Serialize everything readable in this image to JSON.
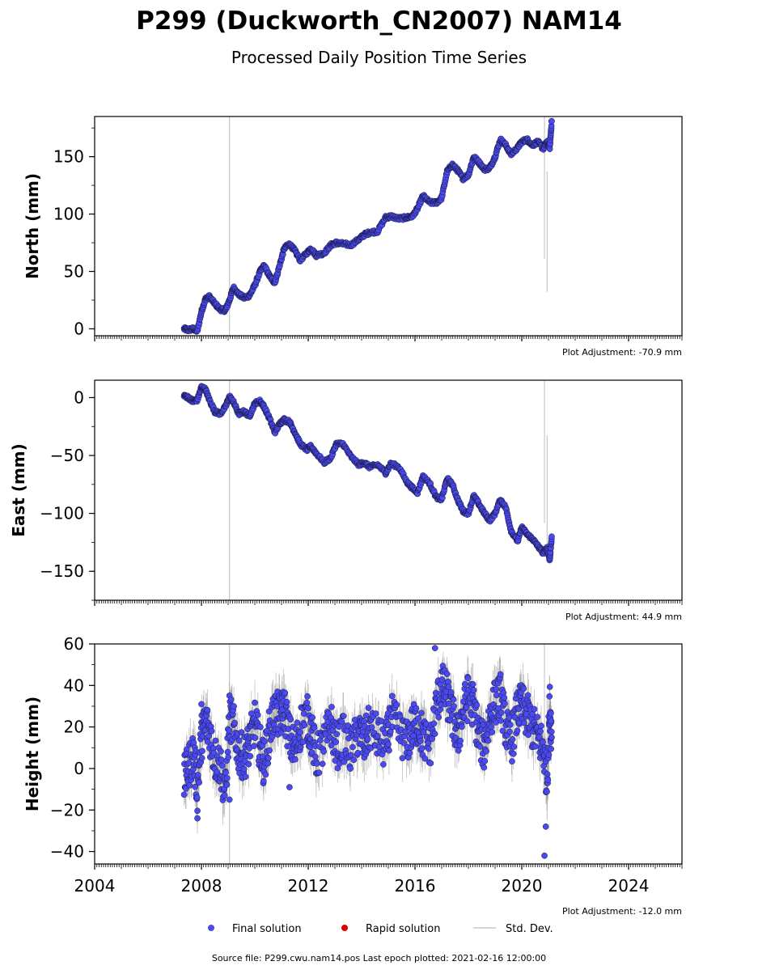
{
  "figure": {
    "title": "P299 (Duckworth_CN2007) NAM14",
    "subtitle": "Processed Daily Position Time Series",
    "footer": "Source file: P299.cwu.nam14.pos  Last epoch plotted: 2021-02-16 12:00:00",
    "legend": {
      "placement": "bottom-center",
      "items": [
        {
          "label": "Final solution",
          "color": "#4a4af0",
          "kind": "dot"
        },
        {
          "label": "Rapid solution",
          "color": "#e00000",
          "kind": "dot"
        },
        {
          "label": "Std. Dev.",
          "color": "#c8c8c8",
          "kind": "line"
        }
      ]
    },
    "colors": {
      "final": "#4a4af0",
      "rapid": "#e00000",
      "stddev": "#b4b4b4"
    }
  },
  "chart_data": [
    {
      "type": "scatter",
      "ylabel": "North (mm)",
      "adjustment": "Plot Adjustment: -70.9 mm",
      "xlim": [
        2004,
        2026
      ],
      "ylim": [
        -6,
        185
      ],
      "yticks": [
        0,
        50,
        100,
        150
      ],
      "xticks": [
        2004,
        2008,
        2012,
        2016,
        2020,
        2024
      ],
      "show_xticklabels": false,
      "grid": false,
      "series": [
        {
          "x": [
            2007.35,
            2007.5,
            2007.7,
            2007.85,
            2008.0,
            2008.15,
            2008.3,
            2008.5,
            2008.7,
            2008.9,
            2009.05,
            2009.2,
            2009.4,
            2009.6,
            2009.8,
            2010.0,
            2010.2,
            2010.35,
            2010.55,
            2010.75,
            2010.95,
            2011.1,
            2011.3,
            2011.5,
            2011.7,
            2011.95,
            2012.1,
            2012.3,
            2012.6,
            2012.85,
            2013.05,
            2013.3,
            2013.6,
            2013.9,
            2014.1,
            2014.3,
            2014.6,
            2014.9,
            2015.1,
            2015.4,
            2015.7,
            2015.9,
            2016.1,
            2016.3,
            2016.55,
            2016.8,
            2017.0,
            2017.2,
            2017.4,
            2017.6,
            2017.8,
            2018.0,
            2018.2,
            2018.4,
            2018.6,
            2018.8,
            2019.0,
            2019.2,
            2019.4,
            2019.6,
            2019.85,
            2020.0,
            2020.2,
            2020.4,
            2020.6,
            2020.8,
            2020.95,
            2021.05,
            2021.12
          ],
          "y": [
            0,
            -1,
            0,
            -2,
            15,
            26,
            28,
            22,
            17,
            16,
            25,
            36,
            30,
            27,
            29,
            38,
            50,
            55,
            46,
            40,
            57,
            70,
            74,
            68,
            60,
            66,
            70,
            64,
            66,
            73,
            75,
            74,
            73,
            78,
            82,
            84,
            85,
            97,
            98,
            96,
            97,
            98,
            105,
            116,
            110,
            110,
            114,
            137,
            143,
            138,
            131,
            134,
            150,
            145,
            139,
            140,
            150,
            165,
            160,
            152,
            158,
            163,
            165,
            160,
            163,
            157,
            163,
            158,
            181
          ]
        }
      ]
    },
    {
      "type": "scatter",
      "ylabel": "East (mm)",
      "adjustment": "Plot Adjustment: 44.9 mm",
      "xlim": [
        2004,
        2026
      ],
      "ylim": [
        -175,
        15
      ],
      "yticks": [
        -150,
        -100,
        -50,
        0
      ],
      "xticks": [
        2004,
        2008,
        2012,
        2016,
        2020,
        2024
      ],
      "show_xticklabels": false,
      "grid": false,
      "series": [
        {
          "x": [
            2007.35,
            2007.5,
            2007.7,
            2007.85,
            2008.0,
            2008.15,
            2008.3,
            2008.5,
            2008.7,
            2008.9,
            2009.05,
            2009.2,
            2009.4,
            2009.6,
            2009.8,
            2010.0,
            2010.2,
            2010.35,
            2010.55,
            2010.75,
            2010.95,
            2011.1,
            2011.3,
            2011.5,
            2011.7,
            2011.95,
            2012.1,
            2012.3,
            2012.6,
            2012.85,
            2013.05,
            2013.3,
            2013.6,
            2013.9,
            2014.1,
            2014.3,
            2014.6,
            2014.9,
            2015.1,
            2015.4,
            2015.7,
            2015.9,
            2016.1,
            2016.3,
            2016.55,
            2016.8,
            2017.0,
            2017.2,
            2017.4,
            2017.6,
            2017.8,
            2018.0,
            2018.2,
            2018.4,
            2018.6,
            2018.8,
            2019.0,
            2019.2,
            2019.4,
            2019.6,
            2019.85,
            2020.0,
            2020.2,
            2020.4,
            2020.6,
            2020.8,
            2020.95,
            2021.05,
            2021.12
          ],
          "y": [
            2,
            0,
            -3,
            -2,
            9,
            7,
            -2,
            -12,
            -14,
            -8,
            1,
            -4,
            -14,
            -12,
            -16,
            -5,
            -3,
            -8,
            -18,
            -30,
            -22,
            -19,
            -21,
            -30,
            -40,
            -45,
            -42,
            -48,
            -56,
            -52,
            -40,
            -40,
            -51,
            -58,
            -56,
            -60,
            -58,
            -65,
            -57,
            -60,
            -73,
            -78,
            -82,
            -68,
            -74,
            -86,
            -88,
            -70,
            -75,
            -88,
            -98,
            -100,
            -85,
            -92,
            -100,
            -106,
            -100,
            -88,
            -95,
            -115,
            -124,
            -112,
            -118,
            -122,
            -128,
            -134,
            -130,
            -140,
            -120
          ]
        }
      ]
    },
    {
      "type": "scatter",
      "ylabel": "Height (mm)",
      "adjustment": "Plot Adjustment: -12.0 mm",
      "xlim": [
        2004,
        2026
      ],
      "ylim": [
        -46,
        60
      ],
      "yticks": [
        -40,
        -20,
        0,
        20,
        40,
        60
      ],
      "xticks": [
        2004,
        2008,
        2012,
        2016,
        2020,
        2024
      ],
      "xticklabels": [
        "2004",
        "2008",
        "2012",
        "2016",
        "2020",
        "2024"
      ],
      "show_xticklabels": true,
      "grid": false,
      "series": [
        {
          "x": [
            2007.35,
            2007.5,
            2007.7,
            2007.85,
            2008.0,
            2008.15,
            2008.3,
            2008.5,
            2008.7,
            2008.9,
            2009.05,
            2009.2,
            2009.4,
            2009.6,
            2009.8,
            2010.0,
            2010.2,
            2010.35,
            2010.55,
            2010.75,
            2010.95,
            2011.1,
            2011.3,
            2011.5,
            2011.7,
            2011.95,
            2012.1,
            2012.3,
            2012.6,
            2012.85,
            2013.05,
            2013.3,
            2013.6,
            2013.9,
            2014.1,
            2014.3,
            2014.6,
            2014.9,
            2015.1,
            2015.4,
            2015.7,
            2015.9,
            2016.1,
            2016.3,
            2016.55,
            2016.8,
            2017.0,
            2017.2,
            2017.4,
            2017.6,
            2017.8,
            2018.0,
            2018.2,
            2018.4,
            2018.6,
            2018.8,
            2019.0,
            2019.2,
            2019.4,
            2019.6,
            2019.85,
            2020.0,
            2020.2,
            2020.4,
            2020.6,
            2020.8,
            2020.95,
            2021.05,
            2021.12
          ],
          "y": [
            -5,
            0,
            8,
            -10,
            15,
            22,
            18,
            5,
            2,
            -12,
            25,
            20,
            8,
            5,
            12,
            22,
            10,
            2,
            18,
            28,
            24,
            30,
            15,
            8,
            20,
            25,
            18,
            5,
            12,
            22,
            10,
            15,
            8,
            18,
            12,
            20,
            15,
            10,
            25,
            18,
            12,
            20,
            22,
            15,
            10,
            30,
            40,
            35,
            25,
            15,
            28,
            35,
            30,
            15,
            10,
            25,
            32,
            35,
            20,
            12,
            28,
            30,
            25,
            20,
            15,
            10,
            -5,
            30,
            15
          ]
        }
      ],
      "outliers": {
        "x": [
          2007.85,
          2008.0,
          2009.05,
          2011.3,
          2016.75,
          2020.85,
          2020.9
        ],
        "y": [
          -24,
          31,
          -15,
          -9,
          58,
          -42,
          -28
        ]
      }
    }
  ]
}
